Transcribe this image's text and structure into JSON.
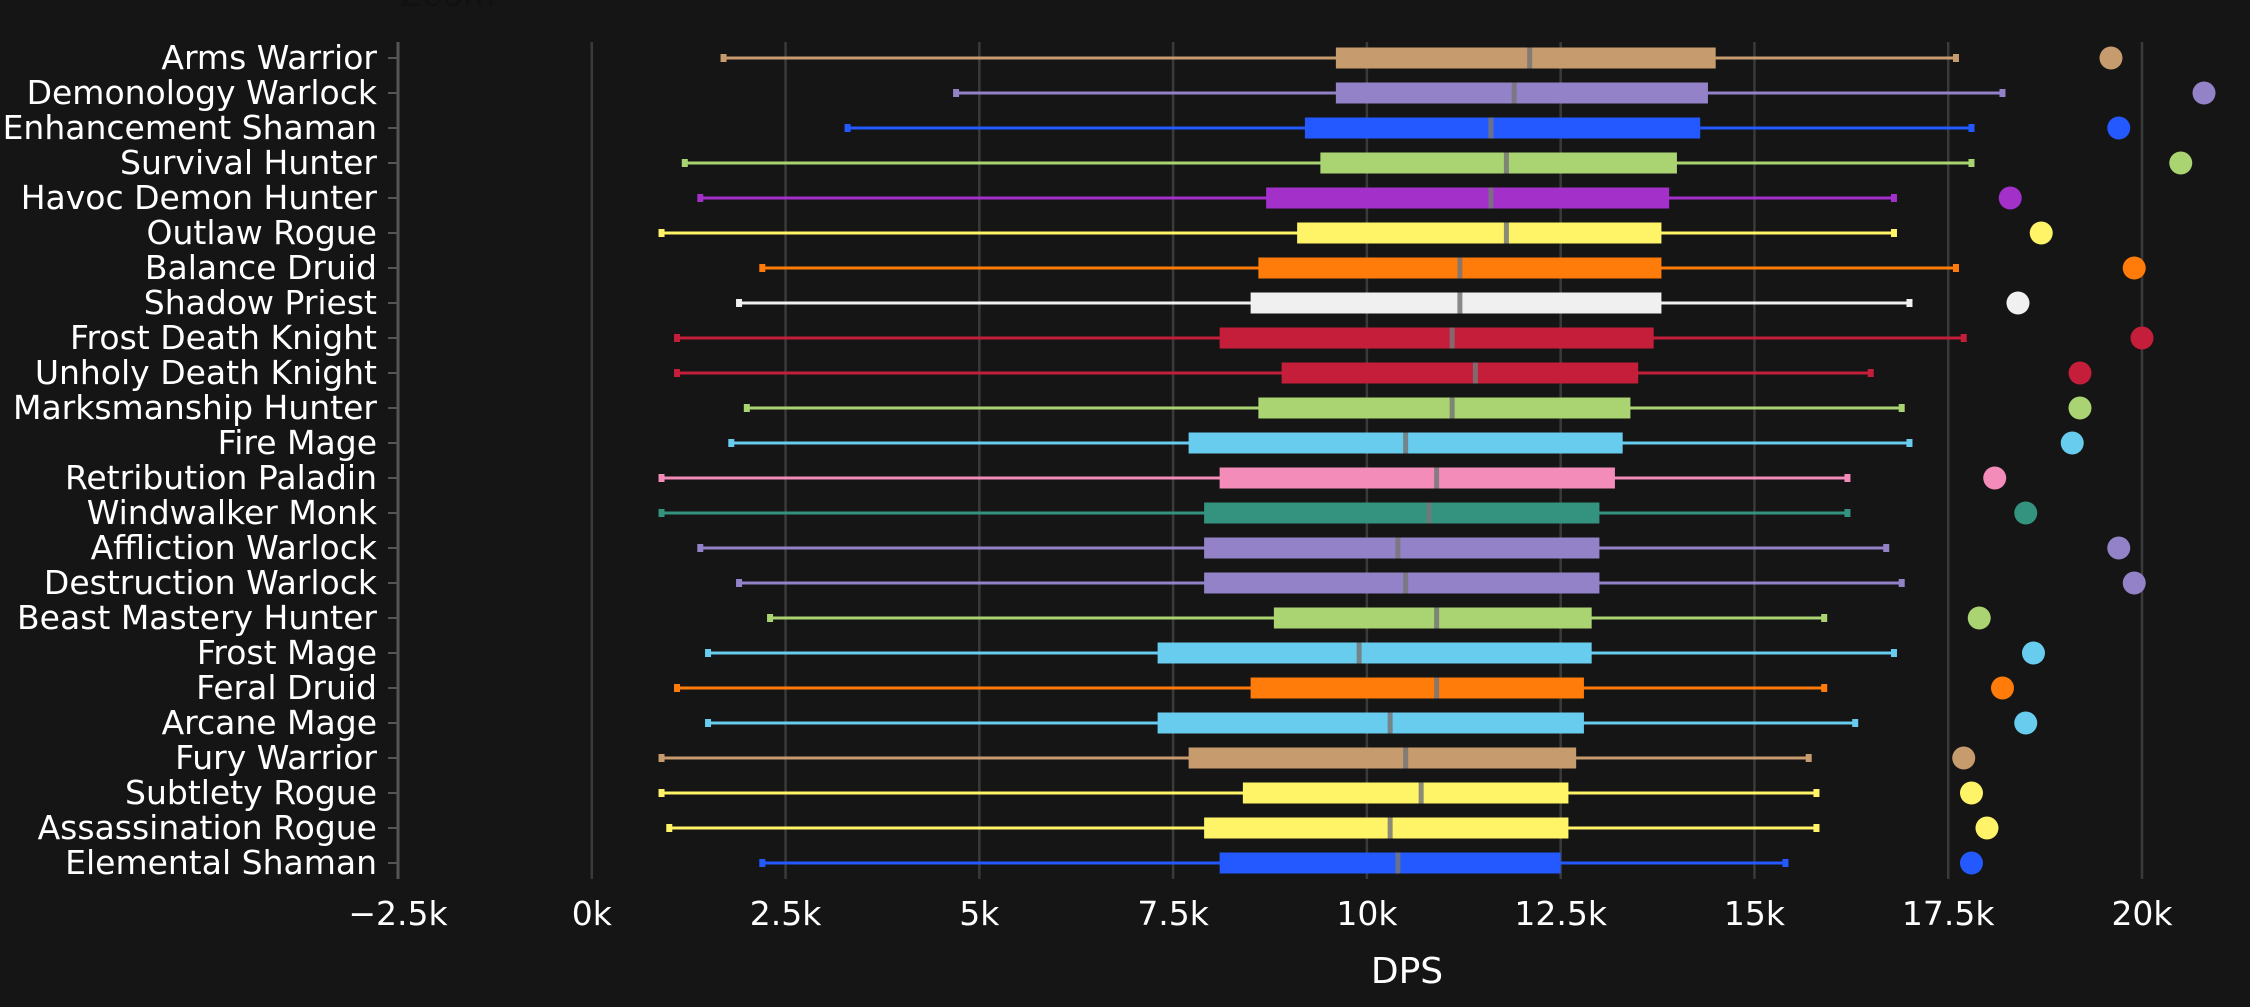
{
  "header": {
    "cut_title": "Zoom"
  },
  "chart_data": {
    "type": "boxplot",
    "orientation": "horizontal",
    "xlabel": "DPS",
    "xlim": [
      -2500,
      20700
    ],
    "xticks": [
      -2500,
      0,
      2500,
      5000,
      7500,
      10000,
      12500,
      15000,
      17500,
      20000
    ],
    "xtick_labels": [
      "−2.5k",
      "0k",
      "2.5k",
      "5k",
      "7.5k",
      "10k",
      "12.5k",
      "15k",
      "17.5k",
      "20k"
    ],
    "grid": true,
    "legend": "none",
    "series": [
      {
        "name": "Arms Warrior",
        "color": "#C69B6D",
        "min": 1700,
        "q1": 9600,
        "median": 12100,
        "q3": 14500,
        "max": 17600,
        "outlier": 19600
      },
      {
        "name": "Demonology Warlock",
        "color": "#9482C9",
        "min": 4700,
        "q1": 9600,
        "median": 11900,
        "q3": 14400,
        "max": 18200,
        "outlier": 20800
      },
      {
        "name": "Enhancement Shaman",
        "color": "#2359FF",
        "min": 3300,
        "q1": 9200,
        "median": 11600,
        "q3": 14300,
        "max": 17800,
        "outlier": 19700
      },
      {
        "name": "Survival Hunter",
        "color": "#AAD372",
        "min": 1200,
        "q1": 9400,
        "median": 11800,
        "q3": 14000,
        "max": 17800,
        "outlier": 20500
      },
      {
        "name": "Havoc Demon Hunter",
        "color": "#A330C9",
        "min": 1400,
        "q1": 8700,
        "median": 11600,
        "q3": 13900,
        "max": 16800,
        "outlier": 18300
      },
      {
        "name": "Outlaw Rogue",
        "color": "#FFF468",
        "min": 900,
        "q1": 9100,
        "median": 11800,
        "q3": 13800,
        "max": 16800,
        "outlier": 18700
      },
      {
        "name": "Balance Druid",
        "color": "#FF7C0A",
        "min": 2200,
        "q1": 8600,
        "median": 11200,
        "q3": 13800,
        "max": 17600,
        "outlier": 19900
      },
      {
        "name": "Shadow Priest",
        "color": "#F0F0F0",
        "min": 1900,
        "q1": 8500,
        "median": 11200,
        "q3": 13800,
        "max": 17000,
        "outlier": 18400
      },
      {
        "name": "Frost Death Knight",
        "color": "#C41E3A",
        "min": 1100,
        "q1": 8100,
        "median": 11100,
        "q3": 13700,
        "max": 17700,
        "outlier": 20000
      },
      {
        "name": "Unholy Death Knight",
        "color": "#C41E3A",
        "min": 1100,
        "q1": 8900,
        "median": 11400,
        "q3": 13500,
        "max": 16500,
        "outlier": 19200
      },
      {
        "name": "Marksmanship Hunter",
        "color": "#AAD372",
        "min": 2000,
        "q1": 8600,
        "median": 11100,
        "q3": 13400,
        "max": 16900,
        "outlier": 19200
      },
      {
        "name": "Fire Mage",
        "color": "#68CCEF",
        "min": 1800,
        "q1": 7700,
        "median": 10500,
        "q3": 13300,
        "max": 17000,
        "outlier": 19100
      },
      {
        "name": "Retribution Paladin",
        "color": "#F48CBA",
        "min": 900,
        "q1": 8100,
        "median": 10900,
        "q3": 13200,
        "max": 16200,
        "outlier": 18100
      },
      {
        "name": "Windwalker Monk",
        "color": "#33937F",
        "min": 900,
        "q1": 7900,
        "median": 10800,
        "q3": 13000,
        "max": 16200,
        "outlier": 18500
      },
      {
        "name": "Affliction Warlock",
        "color": "#9482C9",
        "min": 1400,
        "q1": 7900,
        "median": 10400,
        "q3": 13000,
        "max": 16700,
        "outlier": 19700
      },
      {
        "name": "Destruction Warlock",
        "color": "#9482C9",
        "min": 1900,
        "q1": 7900,
        "median": 10500,
        "q3": 13000,
        "max": 16900,
        "outlier": 19900
      },
      {
        "name": "Beast Mastery Hunter",
        "color": "#AAD372",
        "min": 2300,
        "q1": 8800,
        "median": 10900,
        "q3": 12900,
        "max": 15900,
        "outlier": 17900
      },
      {
        "name": "Frost Mage",
        "color": "#68CCEF",
        "min": 1500,
        "q1": 7300,
        "median": 9900,
        "q3": 12900,
        "max": 16800,
        "outlier": 18600
      },
      {
        "name": "Feral Druid",
        "color": "#FF7C0A",
        "min": 1100,
        "q1": 8500,
        "median": 10900,
        "q3": 12800,
        "max": 15900,
        "outlier": 18200
      },
      {
        "name": "Arcane Mage",
        "color": "#68CCEF",
        "min": 1500,
        "q1": 7300,
        "median": 10300,
        "q3": 12800,
        "max": 16300,
        "outlier": 18500
      },
      {
        "name": "Fury Warrior",
        "color": "#C69B6D",
        "min": 900,
        "q1": 7700,
        "median": 10500,
        "q3": 12700,
        "max": 15700,
        "outlier": 17700
      },
      {
        "name": "Subtlety Rogue",
        "color": "#FFF468",
        "min": 900,
        "q1": 8400,
        "median": 10700,
        "q3": 12600,
        "max": 15800,
        "outlier": 17800
      },
      {
        "name": "Assassination Rogue",
        "color": "#FFF468",
        "min": 1000,
        "q1": 7900,
        "median": 10300,
        "q3": 12600,
        "max": 15800,
        "outlier": 18000
      },
      {
        "name": "Elemental Shaman",
        "color": "#2359FF",
        "min": 2200,
        "q1": 8100,
        "median": 10400,
        "q3": 12500,
        "max": 15400,
        "outlier": 17800
      }
    ]
  }
}
